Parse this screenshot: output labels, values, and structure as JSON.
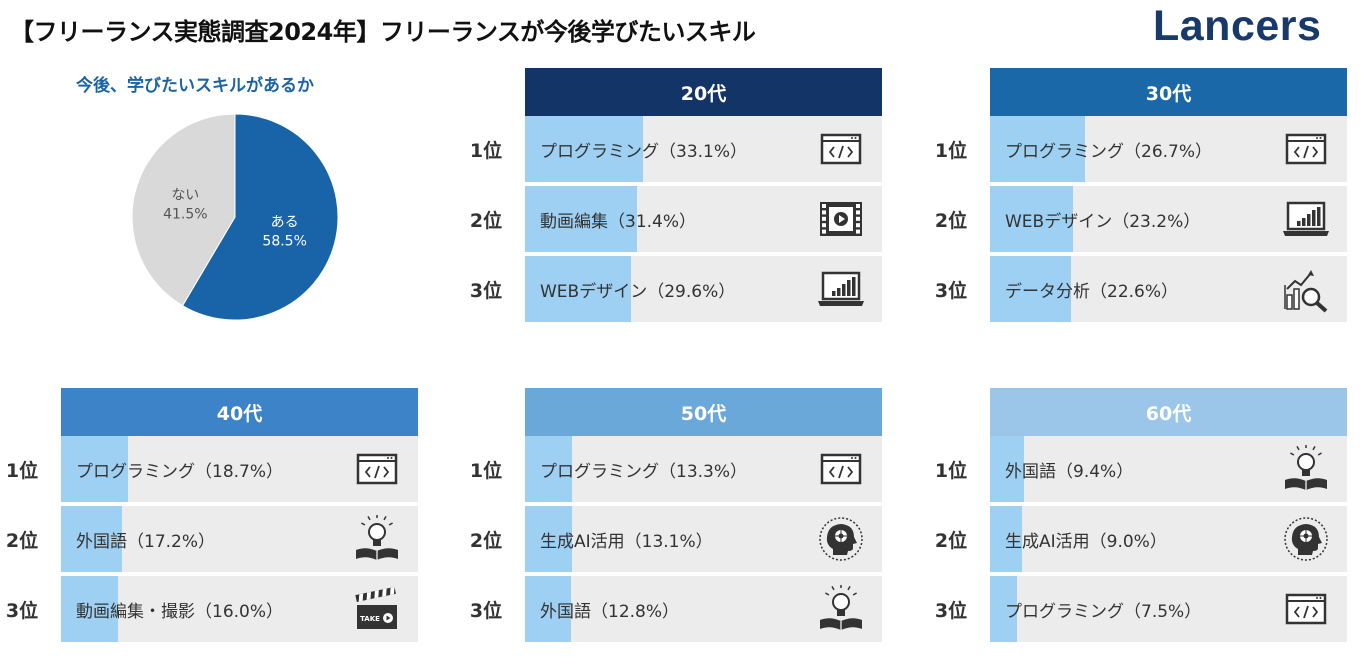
{
  "header": {
    "title": "【フリーランス実態調査2024年】フリーランスが今後学びたいスキル",
    "logo": "Lancers"
  },
  "colors": {
    "yes": "#1964a8",
    "no": "#d9d9d9",
    "bar_fill": "#9dd0f2",
    "bar_bg": "#ececec",
    "header_20": "#133466",
    "header_30": "#1a68a8",
    "header_40": "#3c83c8",
    "header_50": "#6aa8da",
    "header_60": "#9bc6ea"
  },
  "chart_data": [
    {
      "type": "pie",
      "title": "今後、学びたいスキルがあるか",
      "slices": [
        {
          "label": "ある",
          "value": 58.5,
          "value_label": "58.5%"
        },
        {
          "label": "ない",
          "value": 41.5,
          "value_label": "41.5%"
        }
      ]
    },
    {
      "type": "bar",
      "title": "20代",
      "ranks": [
        "1位",
        "2位",
        "3位"
      ],
      "categories": [
        "プログラミング",
        "動画編集",
        "WEBデザイン"
      ],
      "values": [
        33.1,
        31.4,
        29.6
      ],
      "labels": [
        "プログラミング（33.1%）",
        "動画編集（31.4%）",
        "WEBデザイン（29.6%）"
      ],
      "icons": [
        "code-window-icon",
        "film-strip-icon",
        "laptop-chart-icon"
      ]
    },
    {
      "type": "bar",
      "title": "30代",
      "ranks": [
        "1位",
        "2位",
        "3位"
      ],
      "categories": [
        "プログラミング",
        "WEBデザイン",
        "データ分析"
      ],
      "values": [
        26.7,
        23.2,
        22.6
      ],
      "labels": [
        "プログラミング（26.7%）",
        "WEBデザイン（23.2%）",
        "データ分析（22.6%）"
      ],
      "icons": [
        "code-window-icon",
        "laptop-chart-icon",
        "data-analysis-icon"
      ]
    },
    {
      "type": "bar",
      "title": "40代",
      "ranks": [
        "1位",
        "2位",
        "3位"
      ],
      "categories": [
        "プログラミング",
        "外国語",
        "動画編集・撮影"
      ],
      "values": [
        18.7,
        17.2,
        16.0
      ],
      "labels": [
        "プログラミング（18.7%）",
        "外国語（17.2%）",
        "動画編集・撮影（16.0%）"
      ],
      "icons": [
        "code-window-icon",
        "lightbulb-book-icon",
        "clapperboard-icon"
      ]
    },
    {
      "type": "bar",
      "title": "50代",
      "ranks": [
        "1位",
        "2位",
        "3位"
      ],
      "categories": [
        "プログラミング",
        "生成AI活用",
        "外国語"
      ],
      "values": [
        13.3,
        13.1,
        12.8
      ],
      "labels": [
        "プログラミング（13.3%）",
        "生成AI活用（13.1%）",
        "外国語（12.8%）"
      ],
      "icons": [
        "code-window-icon",
        "ai-head-icon",
        "lightbulb-book-icon"
      ]
    },
    {
      "type": "bar",
      "title": "60代",
      "ranks": [
        "1位",
        "2位",
        "3位"
      ],
      "categories": [
        "外国語",
        "生成AI活用",
        "プログラミング"
      ],
      "values": [
        9.4,
        9.0,
        7.5
      ],
      "labels": [
        "外国語（9.4%）",
        "生成AI活用（9.0%）",
        "プログラミング（7.5%）"
      ],
      "icons": [
        "lightbulb-book-icon",
        "ai-head-icon",
        "code-window-icon"
      ]
    }
  ]
}
